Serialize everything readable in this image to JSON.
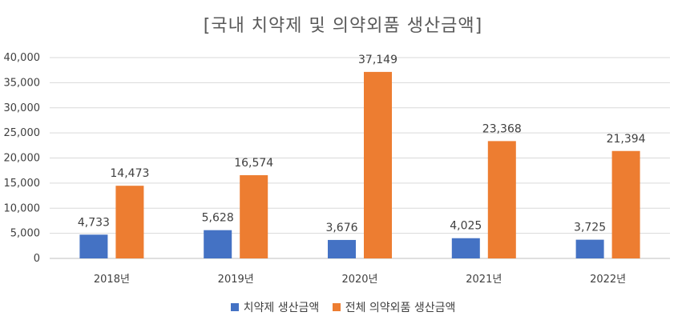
{
  "chart_data": {
    "type": "bar",
    "title": "[국내 치약제 및 의약외품 생산금액]",
    "categories": [
      "2018년",
      "2019년",
      "2020년",
      "2021년",
      "2022년"
    ],
    "series": [
      {
        "name": "치약제 생산금액",
        "color": "#4472C4",
        "values": [
          4733,
          5628,
          3676,
          4025,
          3725
        ]
      },
      {
        "name": "전체 의약외품 생산금액",
        "color": "#ED7D31",
        "values": [
          14473,
          16574,
          37149,
          23368,
          21394
        ]
      }
    ],
    "ylim": [
      0,
      40000
    ],
    "yticks": [
      0,
      5000,
      10000,
      15000,
      20000,
      25000,
      30000,
      35000,
      40000
    ],
    "grid": true,
    "legend_position": "bottom",
    "xlabel": "",
    "ylabel": ""
  }
}
